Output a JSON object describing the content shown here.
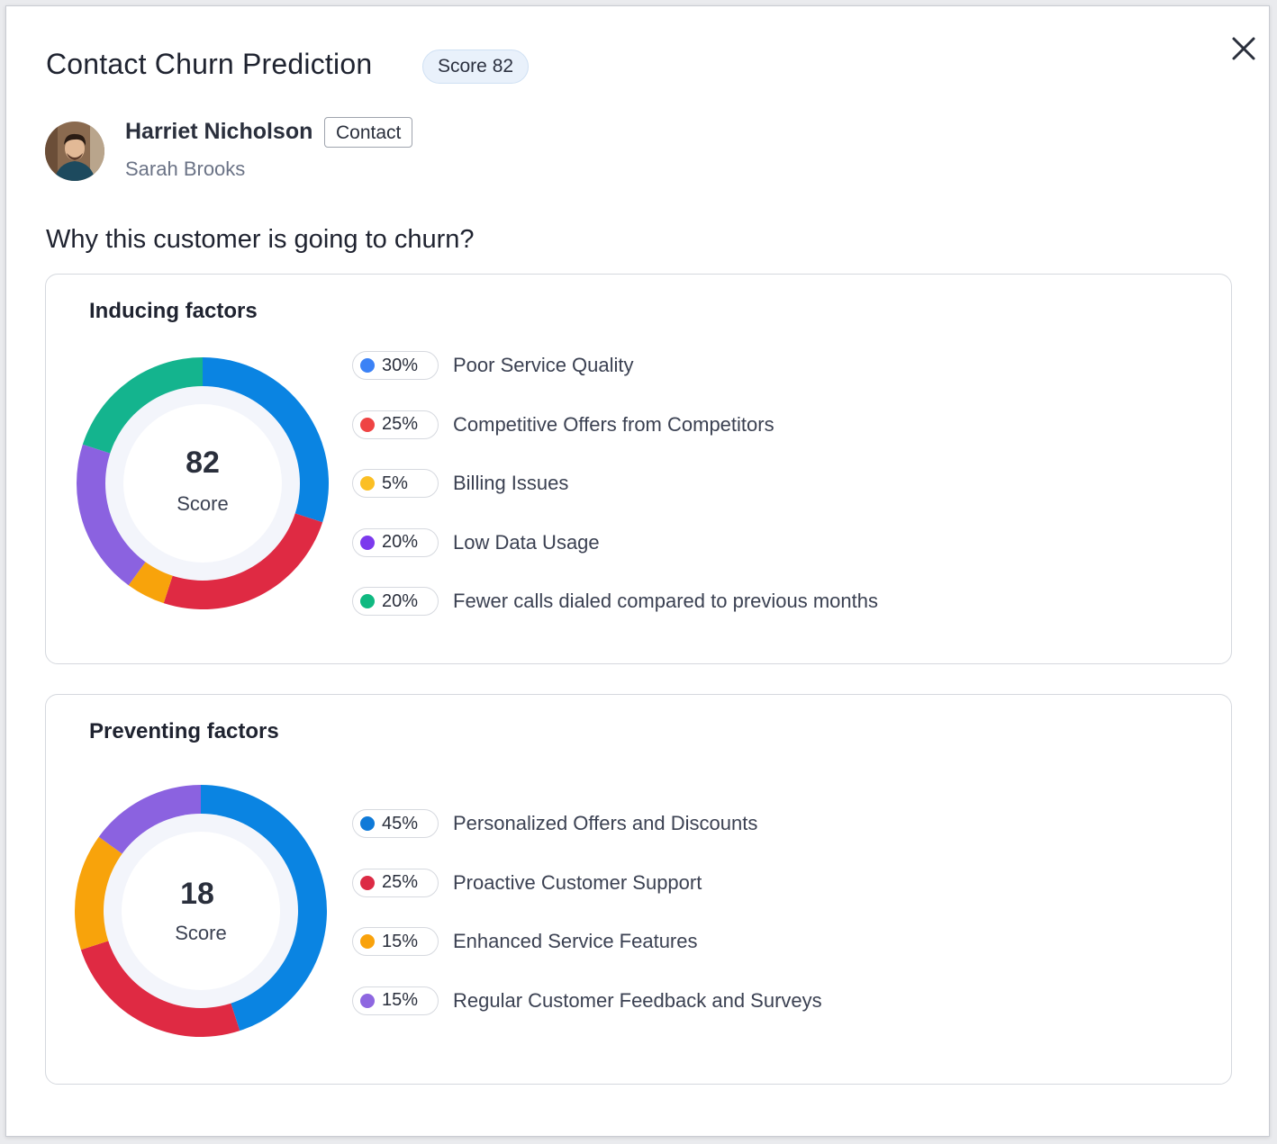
{
  "dialog": {
    "title": "Contact Churn Prediction",
    "score_badge": "Score 82"
  },
  "contact": {
    "name": "Harriet Nicholson",
    "tag": "Contact",
    "owner": "Sarah Brooks"
  },
  "question": "Why this customer is going to churn?",
  "inducing": {
    "title": "Inducing factors",
    "score_value": "82",
    "score_label": "Score",
    "factors": [
      {
        "pct": "30%",
        "label": "Poor Service Quality",
        "dot": "#3b82f6"
      },
      {
        "pct": "25%",
        "label": "Competitive Offers from Competitors",
        "dot": "#ef4444"
      },
      {
        "pct": "5%",
        "label": "Billing Issues",
        "dot": "#fbbf24"
      },
      {
        "pct": "20%",
        "label": "Low Data Usage",
        "dot": "#7c3aed"
      },
      {
        "pct": "20%",
        "label": "Fewer calls dialed compared to previous months",
        "dot": "#10b981"
      }
    ]
  },
  "preventing": {
    "title": "Preventing factors",
    "score_value": "18",
    "score_label": "Score",
    "factors": [
      {
        "pct": "45%",
        "label": "Personalized Offers and Discounts",
        "dot": "#0f7ad8"
      },
      {
        "pct": "25%",
        "label": "Proactive Customer Support",
        "dot": "#dc2b45"
      },
      {
        "pct": "15%",
        "label": "Enhanced Service Features",
        "dot": "#f9a20c"
      },
      {
        "pct": "15%",
        "label": "Regular Customer Feedback and Surveys",
        "dot": "#8e67e0"
      }
    ]
  },
  "chart_data": [
    {
      "type": "pie",
      "title": "Inducing factors",
      "categories": [
        "Poor Service Quality",
        "Competitive Offers from Competitors",
        "Billing Issues",
        "Low Data Usage",
        "Fewer calls dialed compared to previous months"
      ],
      "values": [
        30,
        25,
        5,
        20,
        20
      ],
      "colors": [
        "#0a84e2",
        "#df2a43",
        "#f8a30b",
        "#8b62e0",
        "#14b48e"
      ]
    },
    {
      "type": "pie",
      "title": "Preventing factors",
      "categories": [
        "Personalized Offers and Discounts",
        "Proactive Customer Support",
        "Enhanced Service Features",
        "Regular Customer Feedback and Surveys"
      ],
      "values": [
        45,
        25,
        15,
        15
      ],
      "colors": [
        "#0a84e2",
        "#df2a43",
        "#f8a30b",
        "#8b62e0"
      ]
    }
  ]
}
